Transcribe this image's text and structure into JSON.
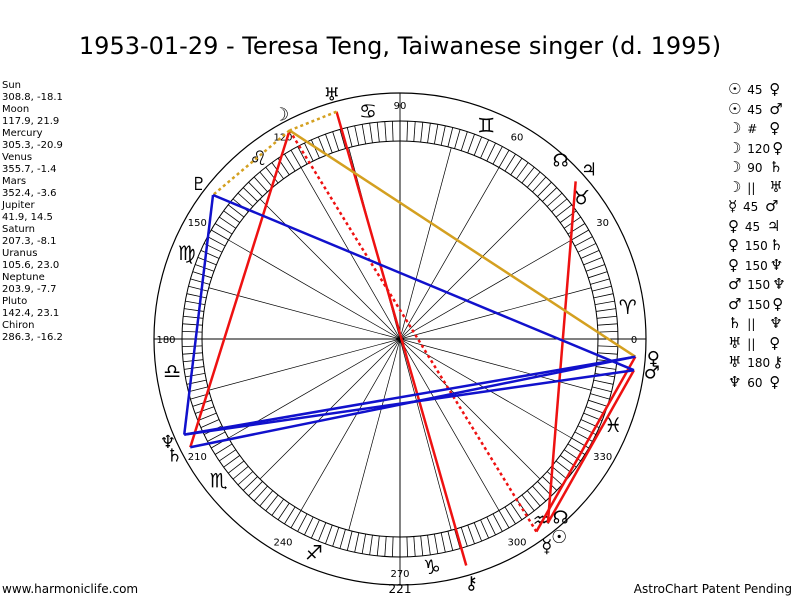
{
  "title": "1953-01-29 - Teresa Teng, Taiwanese singer (d. 1995)",
  "planets": [
    {
      "name": "Sun",
      "coords": "308.8, -18.1",
      "glyph": "☉",
      "lon": 308.8
    },
    {
      "name": "Moon",
      "coords": "117.9, 21.9",
      "glyph": "☽",
      "lon": 117.9
    },
    {
      "name": "Mercury",
      "coords": "305.3, -20.9",
      "glyph": "☿",
      "lon": 305.3
    },
    {
      "name": "Venus",
      "coords": "355.7, -1.4",
      "glyph": "♀",
      "lon": 355.7
    },
    {
      "name": "Mars",
      "coords": "352.4, -3.6",
      "glyph": "♂",
      "lon": 352.4
    },
    {
      "name": "Jupiter",
      "coords": "41.9, 14.5",
      "glyph": "♃",
      "lon": 41.9
    },
    {
      "name": "Saturn",
      "coords": "207.3, -8.1",
      "glyph": "♄",
      "lon": 207.3
    },
    {
      "name": "Uranus",
      "coords": "105.6, 23.0",
      "glyph": "♅",
      "lon": 105.6
    },
    {
      "name": "Neptune",
      "coords": "203.9, -7.7",
      "glyph": "♆",
      "lon": 203.9
    },
    {
      "name": "Pluto",
      "coords": "142.4, 23.1",
      "glyph": "♇",
      "lon": 142.4
    },
    {
      "name": "Chiron",
      "coords": "286.3, -16.2",
      "glyph": "⚷",
      "lon": 286.3
    }
  ],
  "extra_points": [
    {
      "glyph": "☊",
      "lon": 48.0
    },
    {
      "glyph": "☊",
      "lon": 312.0
    }
  ],
  "aspects": [
    {
      "p1": "☉",
      "aspect": "45",
      "p2": "♀"
    },
    {
      "p1": "☉",
      "aspect": "45",
      "p2": "♂"
    },
    {
      "p1": "☽",
      "aspect": "#",
      "p2": "♀"
    },
    {
      "p1": "☽",
      "aspect": "120",
      "p2": "♀"
    },
    {
      "p1": "☽",
      "aspect": "90",
      "p2": "♄"
    },
    {
      "p1": "☽",
      "aspect": "||",
      "p2": "♅"
    },
    {
      "p1": "☿",
      "aspect": "45",
      "p2": "♂"
    },
    {
      "p1": "♀",
      "aspect": "45",
      "p2": "♃"
    },
    {
      "p1": "♀",
      "aspect": "150",
      "p2": "♄"
    },
    {
      "p1": "♀",
      "aspect": "150",
      "p2": "♆"
    },
    {
      "p1": "♂",
      "aspect": "150",
      "p2": "♆"
    },
    {
      "p1": "♂",
      "aspect": "150",
      "p2": "♀"
    },
    {
      "p1": "♄",
      "aspect": "||",
      "p2": "♆"
    },
    {
      "p1": "♅",
      "aspect": "||",
      "p2": "♀"
    },
    {
      "p1": "♅",
      "aspect": "180",
      "p2": "⚷"
    },
    {
      "p1": "♆",
      "aspect": "60",
      "p2": "♀"
    }
  ],
  "signs": [
    "♈",
    "♉",
    "♊",
    "♋",
    "♌",
    "♍",
    "♎",
    "♏",
    "♐",
    "♑",
    "♒",
    "♓"
  ],
  "degree_labels": [
    "0",
    "30",
    "60",
    "90",
    "120",
    "150",
    "180",
    "210",
    "240",
    "270",
    "300",
    "330"
  ],
  "mid_label": "221",
  "footer": {
    "site": "www.harmoniclife.com",
    "notice": "AstroChart Patent Pending"
  },
  "colors": {
    "red": "#ee1111",
    "blue": "#1111cc",
    "gold": "#d4a020",
    "black": "#000000"
  },
  "aspect_lines": [
    {
      "from": 308.8,
      "to": 41.9,
      "color": "red",
      "dashed": false
    },
    {
      "from": 117.9,
      "to": 207.3,
      "color": "red",
      "dashed": false
    },
    {
      "from": 105.6,
      "to": 286.3,
      "color": "red",
      "dashed": false
    },
    {
      "from": 355.7,
      "to": 305.3,
      "color": "red",
      "dashed": false
    },
    {
      "from": 352.4,
      "to": 308.8,
      "color": "red",
      "dashed": false
    },
    {
      "from": 117.9,
      "to": 305.3,
      "color": "red",
      "dashed": true
    },
    {
      "from": 117.9,
      "to": 355.7,
      "color": "gold",
      "dashed": false
    },
    {
      "from": 105.6,
      "to": 117.9,
      "color": "gold",
      "dashed": true
    },
    {
      "from": 117.9,
      "to": 142.4,
      "color": "gold",
      "dashed": true
    },
    {
      "from": 355.7,
      "to": 207.3,
      "color": "blue",
      "dashed": false
    },
    {
      "from": 355.7,
      "to": 203.9,
      "color": "blue",
      "dashed": false
    },
    {
      "from": 352.4,
      "to": 203.9,
      "color": "blue",
      "dashed": false
    },
    {
      "from": 352.4,
      "to": 142.4,
      "color": "blue",
      "dashed": false
    },
    {
      "from": 142.4,
      "to": 203.9,
      "color": "blue",
      "dashed": false
    }
  ]
}
